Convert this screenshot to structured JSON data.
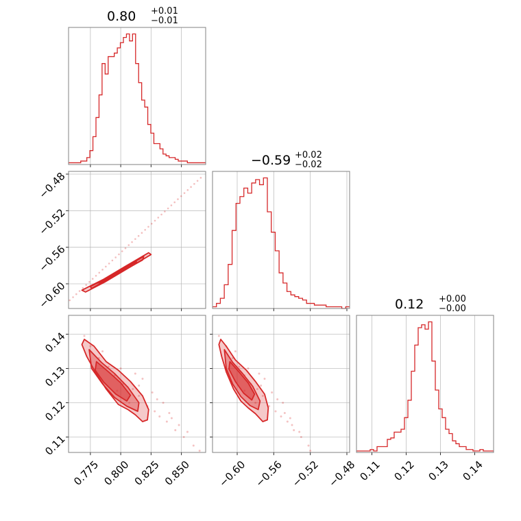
{
  "chart_data": {
    "type": "corner",
    "color": "#d62728",
    "parameters": [
      {
        "title_value": "0.80",
        "title_plus": "+0.01",
        "title_minus": "−0.01",
        "range": [
          0.757,
          0.87
        ],
        "ticks": [
          0.775,
          0.8,
          0.825,
          0.85
        ],
        "tick_labels": [
          "0.775",
          "0.800",
          "0.825",
          "0.850"
        ]
      },
      {
        "title_value": "−0.59",
        "title_plus": "+0.02",
        "title_minus": "−0.02",
        "range": [
          -0.627,
          -0.477
        ],
        "ticks": [
          -0.6,
          -0.56,
          -0.52,
          -0.48
        ],
        "tick_labels": [
          "−0.60",
          "−0.56",
          "−0.52",
          "−0.48"
        ]
      },
      {
        "title_value": "0.12",
        "title_plus": "+0.00",
        "title_minus": "−0.00",
        "range": [
          0.1055,
          0.1455
        ],
        "ticks": [
          0.11,
          0.12,
          0.13,
          0.14
        ],
        "tick_labels": [
          "0.11",
          "0.12",
          "0.13",
          "0.14"
        ]
      }
    ],
    "histograms": [
      {
        "bin_edges": [
          0.757,
          0.87
        ],
        "counts": [
          1,
          1,
          1,
          1,
          2,
          2,
          4,
          8,
          16,
          27,
          40,
          58,
          52,
          62,
          62,
          64,
          67,
          70,
          73,
          75,
          71,
          75,
          58,
          47,
          37,
          33,
          23,
          18,
          12,
          12,
          9,
          6,
          5,
          4,
          4,
          3,
          2,
          2,
          2,
          1,
          1,
          1,
          1,
          1,
          1
        ]
      },
      {
        "bin_edges": [
          -0.627,
          -0.477
        ],
        "counts": [
          1,
          3,
          6,
          14,
          26,
          46,
          62,
          66,
          71,
          68,
          74,
          76,
          73,
          77,
          57,
          45,
          34,
          21,
          15,
          10,
          8,
          7,
          6,
          5,
          3,
          3,
          2,
          2,
          2,
          1,
          1,
          1,
          1,
          0,
          1
        ]
      },
      {
        "bin_edges": [
          0.1055,
          0.1455
        ],
        "counts": [
          1,
          1,
          1,
          1,
          2,
          1,
          4,
          4,
          4,
          9,
          10,
          14,
          14,
          16,
          24,
          36,
          56,
          74,
          86,
          88,
          85,
          90,
          63,
          43,
          30,
          24,
          16,
          13,
          8,
          6,
          4,
          4,
          2,
          2,
          1,
          1,
          2,
          1,
          1,
          1
        ]
      }
    ],
    "pairs": [
      {
        "x": 0,
        "y": 1,
        "contours": [
          [
            [
              0.768,
              -0.607
            ],
            [
              0.786,
              -0.595
            ],
            [
              0.805,
              -0.58
            ],
            [
              0.823,
              -0.566
            ],
            [
              0.825,
              -0.568
            ],
            [
              0.806,
              -0.583
            ],
            [
              0.787,
              -0.598
            ],
            [
              0.771,
              -0.609
            ]
          ],
          [
            [
              0.775,
              -0.603
            ],
            [
              0.79,
              -0.593
            ],
            [
              0.805,
              -0.581
            ],
            [
              0.819,
              -0.57
            ],
            [
              0.818,
              -0.574
            ],
            [
              0.803,
              -0.585
            ],
            [
              0.788,
              -0.596
            ],
            [
              0.776,
              -0.605
            ]
          ],
          [
            [
              0.782,
              -0.599
            ],
            [
              0.794,
              -0.59
            ],
            [
              0.806,
              -0.581
            ],
            [
              0.813,
              -0.576
            ],
            [
              0.811,
              -0.579
            ],
            [
              0.8,
              -0.587
            ],
            [
              0.789,
              -0.595
            ]
          ]
        ],
        "scatter_line": [
          [
            0.758,
            -0.618
          ],
          [
            0.866,
            -0.484
          ]
        ]
      },
      {
        "x": 0,
        "y": 2,
        "contours": [
          [
            [
              0.77,
              0.1385
            ],
            [
              0.778,
              0.1365
            ],
            [
              0.788,
              0.132
            ],
            [
              0.798,
              0.1295
            ],
            [
              0.808,
              0.1262
            ],
            [
              0.818,
              0.122
            ],
            [
              0.823,
              0.118
            ],
            [
              0.822,
              0.115
            ],
            [
              0.818,
              0.1145
            ],
            [
              0.812,
              0.1165
            ],
            [
              0.806,
              0.118
            ],
            [
              0.798,
              0.1195
            ],
            [
              0.788,
              0.124
            ],
            [
              0.779,
              0.129
            ],
            [
              0.772,
              0.1335
            ],
            [
              0.768,
              0.137
            ]
          ],
          [
            [
              0.774,
              0.1355
            ],
            [
              0.784,
              0.1318
            ],
            [
              0.795,
              0.1285
            ],
            [
              0.806,
              0.1245
            ],
            [
              0.815,
              0.12
            ],
            [
              0.814,
              0.1175
            ],
            [
              0.805,
              0.119
            ],
            [
              0.795,
              0.1215
            ],
            [
              0.785,
              0.1255
            ],
            [
              0.776,
              0.13
            ]
          ],
          [
            [
              0.78,
              0.132
            ],
            [
              0.79,
              0.129
            ],
            [
              0.8,
              0.1258
            ],
            [
              0.808,
              0.1222
            ],
            [
              0.805,
              0.1205
            ],
            [
              0.796,
              0.1225
            ],
            [
              0.786,
              0.126
            ],
            [
              0.779,
              0.1295
            ]
          ]
        ],
        "scatter_points": [
          [
            0.775,
            0.1365
          ],
          [
            0.782,
            0.133
          ],
          [
            0.79,
            0.1305
          ],
          [
            0.795,
            0.128
          ],
          [
            0.802,
            0.1255
          ],
          [
            0.81,
            0.124
          ],
          [
            0.815,
            0.122
          ],
          [
            0.822,
            0.119
          ],
          [
            0.828,
            0.1175
          ],
          [
            0.832,
            0.116
          ],
          [
            0.838,
            0.1145
          ],
          [
            0.845,
            0.112
          ],
          [
            0.852,
            0.11
          ],
          [
            0.86,
            0.1075
          ],
          [
            0.835,
            0.12
          ],
          [
            0.826,
            0.123
          ],
          [
            0.818,
            0.127
          ],
          [
            0.812,
            0.1285
          ],
          [
            0.84,
            0.117
          ],
          [
            0.848,
            0.1135
          ],
          [
            0.77,
            0.1395
          ],
          [
            0.785,
            0.135
          ],
          [
            0.8,
            0.13
          ],
          [
            0.815,
            0.125
          ],
          [
            0.83,
            0.121
          ],
          [
            0.842,
            0.1155
          ],
          [
            0.855,
            0.1115
          ],
          [
            0.865,
            0.106
          ],
          [
            0.807,
            0.12
          ],
          [
            0.797,
            0.1235
          ]
        ]
      },
      {
        "x": 1,
        "y": 2,
        "contours": [
          [
            [
              -0.618,
              0.1385
            ],
            [
              -0.612,
              0.1365
            ],
            [
              -0.602,
              0.1325
            ],
            [
              -0.59,
              0.1295
            ],
            [
              -0.58,
              0.1262
            ],
            [
              -0.57,
              0.1225
            ],
            [
              -0.566,
              0.1185
            ],
            [
              -0.567,
              0.115
            ],
            [
              -0.572,
              0.1145
            ],
            [
              -0.58,
              0.1168
            ],
            [
              -0.588,
              0.1185
            ],
            [
              -0.596,
              0.1205
            ],
            [
              -0.604,
              0.124
            ],
            [
              -0.612,
              0.129
            ],
            [
              -0.617,
              0.1335
            ],
            [
              -0.62,
              0.137
            ]
          ],
          [
            [
              -0.614,
              0.1355
            ],
            [
              -0.605,
              0.1318
            ],
            [
              -0.594,
              0.1285
            ],
            [
              -0.583,
              0.1248
            ],
            [
              -0.575,
              0.1205
            ],
            [
              -0.577,
              0.118
            ],
            [
              -0.586,
              0.1192
            ],
            [
              -0.596,
              0.1218
            ],
            [
              -0.605,
              0.1255
            ],
            [
              -0.612,
              0.13
            ]
          ],
          [
            [
              -0.608,
              0.132
            ],
            [
              -0.598,
              0.129
            ],
            [
              -0.588,
              0.1258
            ],
            [
              -0.581,
              0.1225
            ],
            [
              -0.584,
              0.1208
            ],
            [
              -0.593,
              0.1228
            ],
            [
              -0.602,
              0.1262
            ],
            [
              -0.609,
              0.1298
            ]
          ]
        ],
        "scatter_points": [
          [
            -0.612,
            0.1365
          ],
          [
            -0.605,
            0.133
          ],
          [
            -0.598,
            0.1305
          ],
          [
            -0.592,
            0.128
          ],
          [
            -0.585,
            0.1255
          ],
          [
            -0.578,
            0.124
          ],
          [
            -0.572,
            0.122
          ],
          [
            -0.565,
            0.119
          ],
          [
            -0.558,
            0.1175
          ],
          [
            -0.552,
            0.116
          ],
          [
            -0.545,
            0.1145
          ],
          [
            -0.538,
            0.112
          ],
          [
            -0.53,
            0.11
          ],
          [
            -0.522,
            0.1075
          ],
          [
            -0.55,
            0.12
          ],
          [
            -0.562,
            0.123
          ],
          [
            -0.57,
            0.127
          ],
          [
            -0.576,
            0.1285
          ],
          [
            -0.548,
            0.117
          ],
          [
            -0.54,
            0.1135
          ],
          [
            -0.62,
            0.1395
          ],
          [
            -0.602,
            0.135
          ],
          [
            -0.588,
            0.13
          ],
          [
            -0.574,
            0.125
          ],
          [
            -0.556,
            0.121
          ],
          [
            -0.542,
            0.1155
          ],
          [
            -0.532,
            0.1115
          ],
          [
            -0.52,
            0.106
          ],
          [
            -0.58,
            0.12
          ],
          [
            -0.592,
            0.1235
          ]
        ]
      }
    ]
  }
}
